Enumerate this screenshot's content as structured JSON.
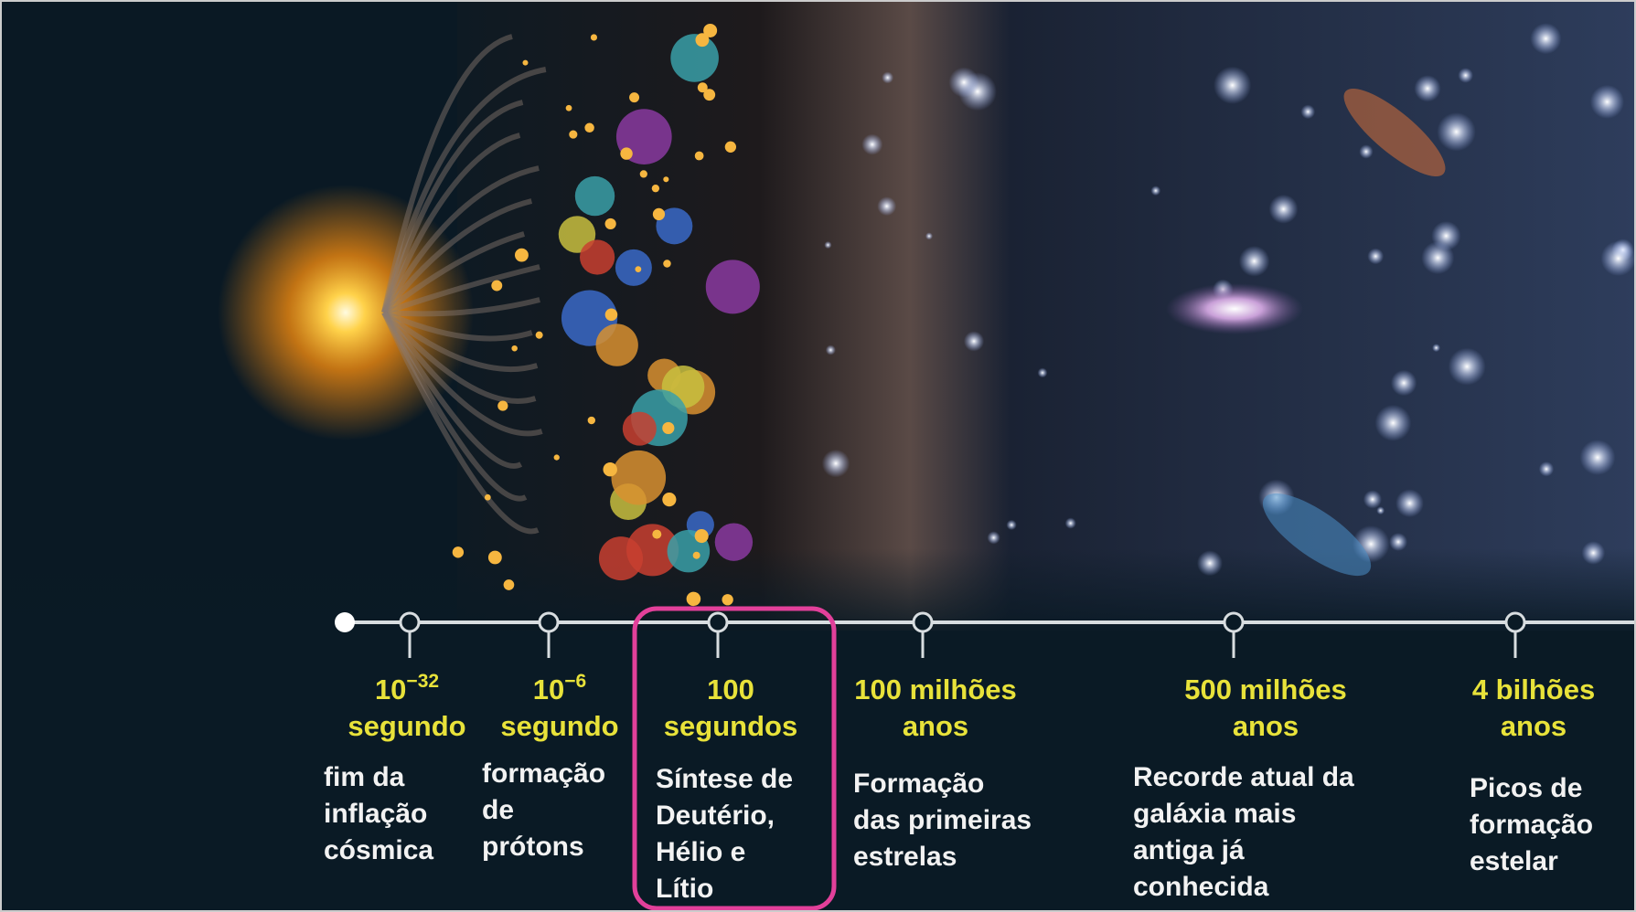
{
  "timeline": [
    {
      "time": [
        "10",
        "segundo"
      ],
      "exponent": "−32",
      "description": [
        "fim da",
        "inflação",
        "cósmica"
      ]
    },
    {
      "time": [
        "10",
        "segundo"
      ],
      "exponent": "−6",
      "description": [
        "formação",
        "de",
        "prótons"
      ]
    },
    {
      "time": [
        "100",
        "segundos"
      ],
      "description": [
        "Síntese de",
        "Deutério,",
        "Hélio e",
        "Lítio"
      ]
    },
    {
      "time": [
        "100  milhões",
        "anos"
      ],
      "description": [
        "Formação",
        "das primeiras",
        "estrelas"
      ]
    },
    {
      "time": [
        "500  milhões",
        "anos"
      ],
      "description": [
        "Recorde atual da",
        "galáxia mais",
        "antiga já",
        "conhecida"
      ]
    },
    {
      "time": [
        "4  bilhões",
        "anos"
      ],
      "description": [
        "Picos de",
        "formação",
        "estelar"
      ]
    }
  ]
}
